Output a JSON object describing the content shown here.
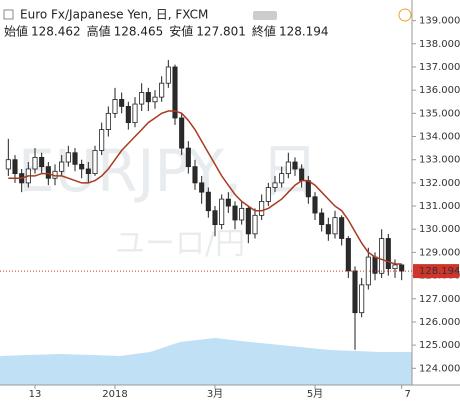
{
  "chart_data": {
    "type": "candlestick",
    "title": "Euro Fx/Japanese Yen, 日, FXCM",
    "ohlc_labels": [
      "始値",
      "高値",
      "安値",
      "終値"
    ],
    "watermark": "EURJPY, 日",
    "watermark_sub": "ユーロ/円",
    "categories": [
      null,
      null,
      null,
      null,
      "13",
      null,
      null,
      null,
      null,
      null,
      null,
      null,
      null,
      null,
      null,
      null,
      "2018",
      null,
      null,
      null,
      null,
      null,
      null,
      null,
      null,
      null,
      null,
      null,
      null,
      null,
      null,
      "3月",
      null,
      null,
      null,
      null,
      null,
      null,
      null,
      null,
      null,
      null,
      null,
      null,
      null,
      null,
      "5月",
      null,
      null,
      null,
      null,
      null,
      null,
      null,
      null,
      null,
      null,
      null,
      null,
      "7"
    ],
    "open": [
      132.6,
      133.0,
      132.4,
      132.0,
      132.6,
      133.1,
      132.7,
      132.2,
      132.5,
      132.9,
      133.3,
      132.8,
      132.6,
      132.4,
      133.4,
      134.3,
      135.0,
      135.6,
      135.3,
      134.6,
      135.4,
      135.9,
      135.5,
      135.7,
      136.3,
      137.0,
      134.8,
      133.5,
      132.7,
      132.0,
      131.6,
      130.8,
      130.2,
      131.3,
      131.0,
      130.4,
      130.9,
      129.8,
      130.6,
      131.2,
      131.8,
      132.0,
      132.4,
      132.9,
      132.6,
      132.1,
      131.4,
      130.7,
      130.2,
      129.8,
      130.5,
      129.6,
      128.2,
      126.4,
      127.6,
      128.8,
      128.1,
      129.6,
      128.3,
      128.462
    ],
    "high": [
      133.9,
      133.2,
      132.6,
      132.9,
      133.5,
      133.3,
      132.9,
      132.8,
      133.2,
      133.6,
      133.5,
      133.0,
      132.9,
      133.6,
      134.6,
      135.3,
      136.1,
      135.9,
      135.5,
      135.7,
      136.3,
      136.1,
      136.0,
      136.6,
      137.3,
      137.1,
      135.0,
      133.8,
      133.0,
      132.3,
      131.8,
      131.0,
      131.5,
      131.6,
      131.2,
      131.2,
      131.0,
      130.9,
      131.5,
      132.0,
      132.3,
      132.7,
      133.3,
      133.1,
      132.8,
      132.3,
      131.6,
      130.9,
      130.5,
      130.8,
      130.6,
      129.7,
      128.4,
      127.9,
      129.2,
      129.0,
      130.0,
      129.8,
      128.7,
      128.465
    ],
    "low": [
      132.3,
      132.0,
      131.6,
      131.8,
      132.4,
      132.4,
      131.9,
      131.9,
      132.3,
      132.7,
      132.5,
      132.2,
      132.0,
      132.3,
      133.2,
      134.0,
      134.8,
      135.0,
      134.3,
      134.4,
      135.1,
      135.1,
      135.2,
      135.5,
      136.1,
      134.5,
      133.2,
      132.4,
      131.7,
      131.1,
      130.5,
      129.7,
      130.0,
      130.7,
      130.0,
      130.2,
      129.4,
      129.6,
      130.4,
      131.0,
      131.6,
      131.8,
      132.2,
      132.3,
      131.8,
      131.1,
      130.4,
      129.9,
      129.5,
      129.6,
      129.3,
      127.9,
      124.8,
      126.2,
      127.4,
      127.8,
      127.9,
      128.0,
      127.9,
      127.801
    ],
    "close": [
      133.0,
      132.4,
      132.0,
      132.6,
      133.1,
      132.7,
      132.2,
      132.5,
      132.9,
      133.3,
      132.8,
      132.6,
      132.4,
      133.4,
      134.3,
      135.0,
      135.6,
      135.3,
      134.6,
      135.4,
      135.9,
      135.5,
      135.7,
      136.3,
      137.0,
      134.8,
      133.5,
      132.7,
      132.0,
      131.6,
      130.8,
      130.2,
      131.3,
      131.0,
      130.4,
      130.9,
      129.8,
      130.6,
      131.2,
      131.8,
      132.0,
      132.4,
      132.9,
      132.6,
      132.1,
      131.4,
      130.7,
      130.2,
      129.8,
      130.5,
      129.6,
      128.2,
      126.4,
      127.6,
      128.8,
      128.1,
      129.6,
      128.3,
      128.46,
      128.194
    ],
    "moving_average": {
      "color": "#a83a1f",
      "values": [
        132.2,
        132.2,
        132.2,
        132.3,
        132.3,
        132.4,
        132.4,
        132.3,
        132.3,
        132.2,
        132.1,
        132.0,
        132.0,
        132.1,
        132.3,
        132.6,
        133.0,
        133.4,
        133.7,
        134.0,
        134.3,
        134.6,
        134.8,
        135.0,
        135.1,
        135.1,
        135.0,
        134.7,
        134.3,
        133.8,
        133.3,
        132.8,
        132.3,
        131.9,
        131.5,
        131.2,
        131.0,
        130.8,
        130.8,
        130.9,
        131.1,
        131.3,
        131.6,
        131.9,
        132.1,
        132.1,
        131.9,
        131.6,
        131.3,
        131.0,
        130.8,
        130.4,
        129.9,
        129.4,
        129.0,
        128.8,
        128.7,
        128.6,
        128.5,
        128.5
      ]
    },
    "up_color": "#ffffff",
    "down_color": "#2b2b2b",
    "wick_color": "#222222",
    "last_price_color": "#d0352b",
    "ylim": [
      123.28,
      139.89
    ],
    "yticks": [
      {
        "value": 124,
        "label": "124.000"
      },
      {
        "value": 125,
        "label": "125.000"
      },
      {
        "value": 126,
        "label": "126.000"
      },
      {
        "value": 127,
        "label": "127.000"
      },
      {
        "value": 128,
        "label": "128.000"
      },
      {
        "value": 129,
        "label": "129.000"
      },
      {
        "value": 130,
        "label": "130.000"
      },
      {
        "value": 131,
        "label": "131.000"
      },
      {
        "value": 132,
        "label": "132.000"
      },
      {
        "value": 133,
        "label": "133.000"
      },
      {
        "value": 134,
        "label": "134.000"
      },
      {
        "value": 135,
        "label": "135.000"
      },
      {
        "value": 136,
        "label": "136.000"
      },
      {
        "value": 137,
        "label": "137.000"
      },
      {
        "value": 138,
        "label": "138.000"
      },
      {
        "value": 139,
        "label": "139.000"
      }
    ]
  }
}
